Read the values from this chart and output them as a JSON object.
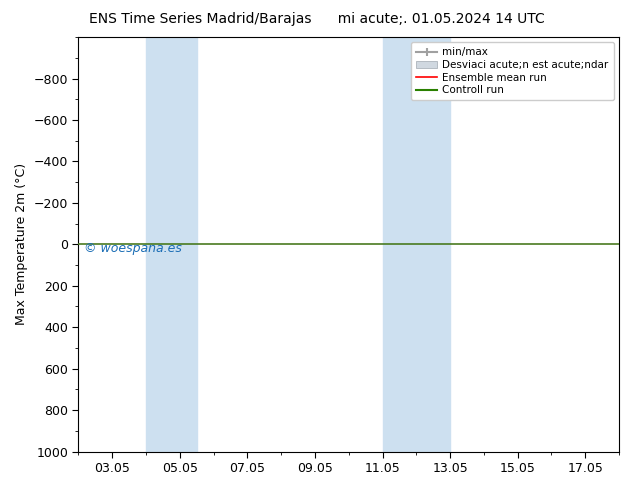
{
  "title_left": "ENS Time Series Madrid/Barajas",
  "title_right": "mi acute;. 01.05.2024 14 UTC",
  "ylabel": "Max Temperature 2m (°C)",
  "xlim_left": 2.0,
  "xlim_right": 18.0,
  "ylim_bottom": 1000,
  "ylim_top": -1000,
  "yticks": [
    -800,
    -600,
    -400,
    -200,
    0,
    200,
    400,
    600,
    800,
    1000
  ],
  "xtick_labels": [
    "03.05",
    "05.05",
    "07.05",
    "09.05",
    "11.05",
    "13.05",
    "15.05",
    "17.05"
  ],
  "xtick_positions": [
    3,
    5,
    7,
    9,
    11,
    13,
    15,
    17
  ],
  "shaded_bands": [
    {
      "xmin": 4.0,
      "xmax": 5.5,
      "color": "#cde0f0",
      "alpha": 1.0
    },
    {
      "xmin": 11.0,
      "xmax": 13.0,
      "color": "#cde0f0",
      "alpha": 1.0
    }
  ],
  "hline_y": 0,
  "hline_color": "#4a7a20",
  "hline_lw": 1.2,
  "watermark": "© woespana.es",
  "watermark_color": "#1a6db5",
  "watermark_fontsize": 9,
  "legend_minmax_label": "min/max",
  "legend_std_label": "Desviaci acute;n est acute;ndar",
  "legend_ens_label": "Ensemble mean run",
  "legend_ctrl_label": "Controll run",
  "background_color": "white",
  "axes_bg": "white",
  "fig_width": 6.34,
  "fig_height": 4.9,
  "dpi": 100,
  "title_fontsize": 10,
  "ylabel_fontsize": 9,
  "tick_fontsize": 9
}
